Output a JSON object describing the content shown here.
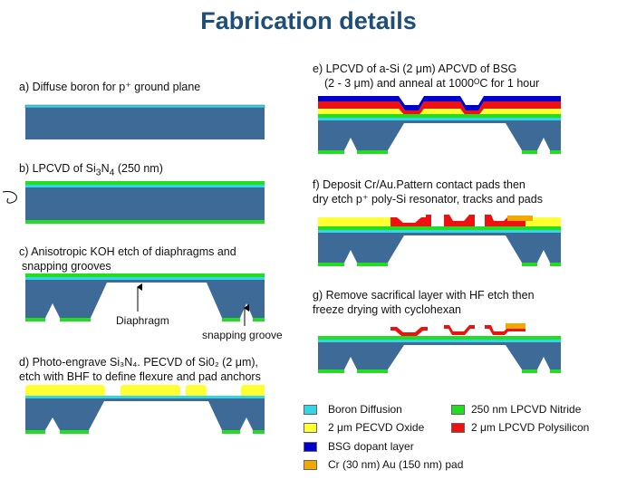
{
  "title": "Fabrication details",
  "steps": {
    "a": "a) Diffuse boron for p⁺ ground plane",
    "b_prefix": "b) LPCVD of Si",
    "b_sub1": "3",
    "b_mid": "N",
    "b_sub2": "4",
    "b_suffix": " (250 nm)",
    "c_line1": "c) Anisotropic KOH etch of diaphragms and",
    "c_line2": "snapping grooves",
    "d_line1": "d) Photo-engrave Si₃N₄. PECVD of Si0₂ (2 μm),",
    "d_line2": "etch with BHF to define flexure and pad anchors",
    "e_line1": "e) LPCVD of a-Si (2 μm) APCVD of BSG",
    "e_line2": "(2 - 3 μm) and anneal at 1000ᴼC for 1 hour",
    "f_line1": "f)  Deposit Cr/Au.Pattern contact pads then",
    "f_line2": "dry etch p⁺ poly-Si resonator, tracks and pads",
    "g_line1": "g) Remove sacrifical layer with HF etch then",
    "g_line2": "freeze drying with cyclohexan"
  },
  "annotations": {
    "diaphragm": "Diaphragm",
    "snapping_groove": "snapping groove"
  },
  "legend": [
    {
      "label": "Boron Diffusion",
      "color": "#33d6e6"
    },
    {
      "label": "2 μm PECVD Oxide",
      "color": "#ffff33"
    },
    {
      "label": "BSG dopant layer",
      "color": "#0000cc"
    },
    {
      "label": "Cr  (30 nm) Au  (150 nm) pad",
      "color": "#f2a800"
    },
    {
      "label": "250 nm LPCVD Nitride",
      "color": "#22dd22"
    },
    {
      "label": "2 μm LPCVD Polysilicon",
      "color": "#ee1111"
    }
  ],
  "colors": {
    "substrate": "#3d6a96",
    "boron": "#33d6e6",
    "nitride": "#22dd22",
    "oxide": "#ffff33",
    "bsg": "#0000cc",
    "poly": "#ee1111",
    "pad": "#f2a800",
    "title": "#1f4e79"
  }
}
